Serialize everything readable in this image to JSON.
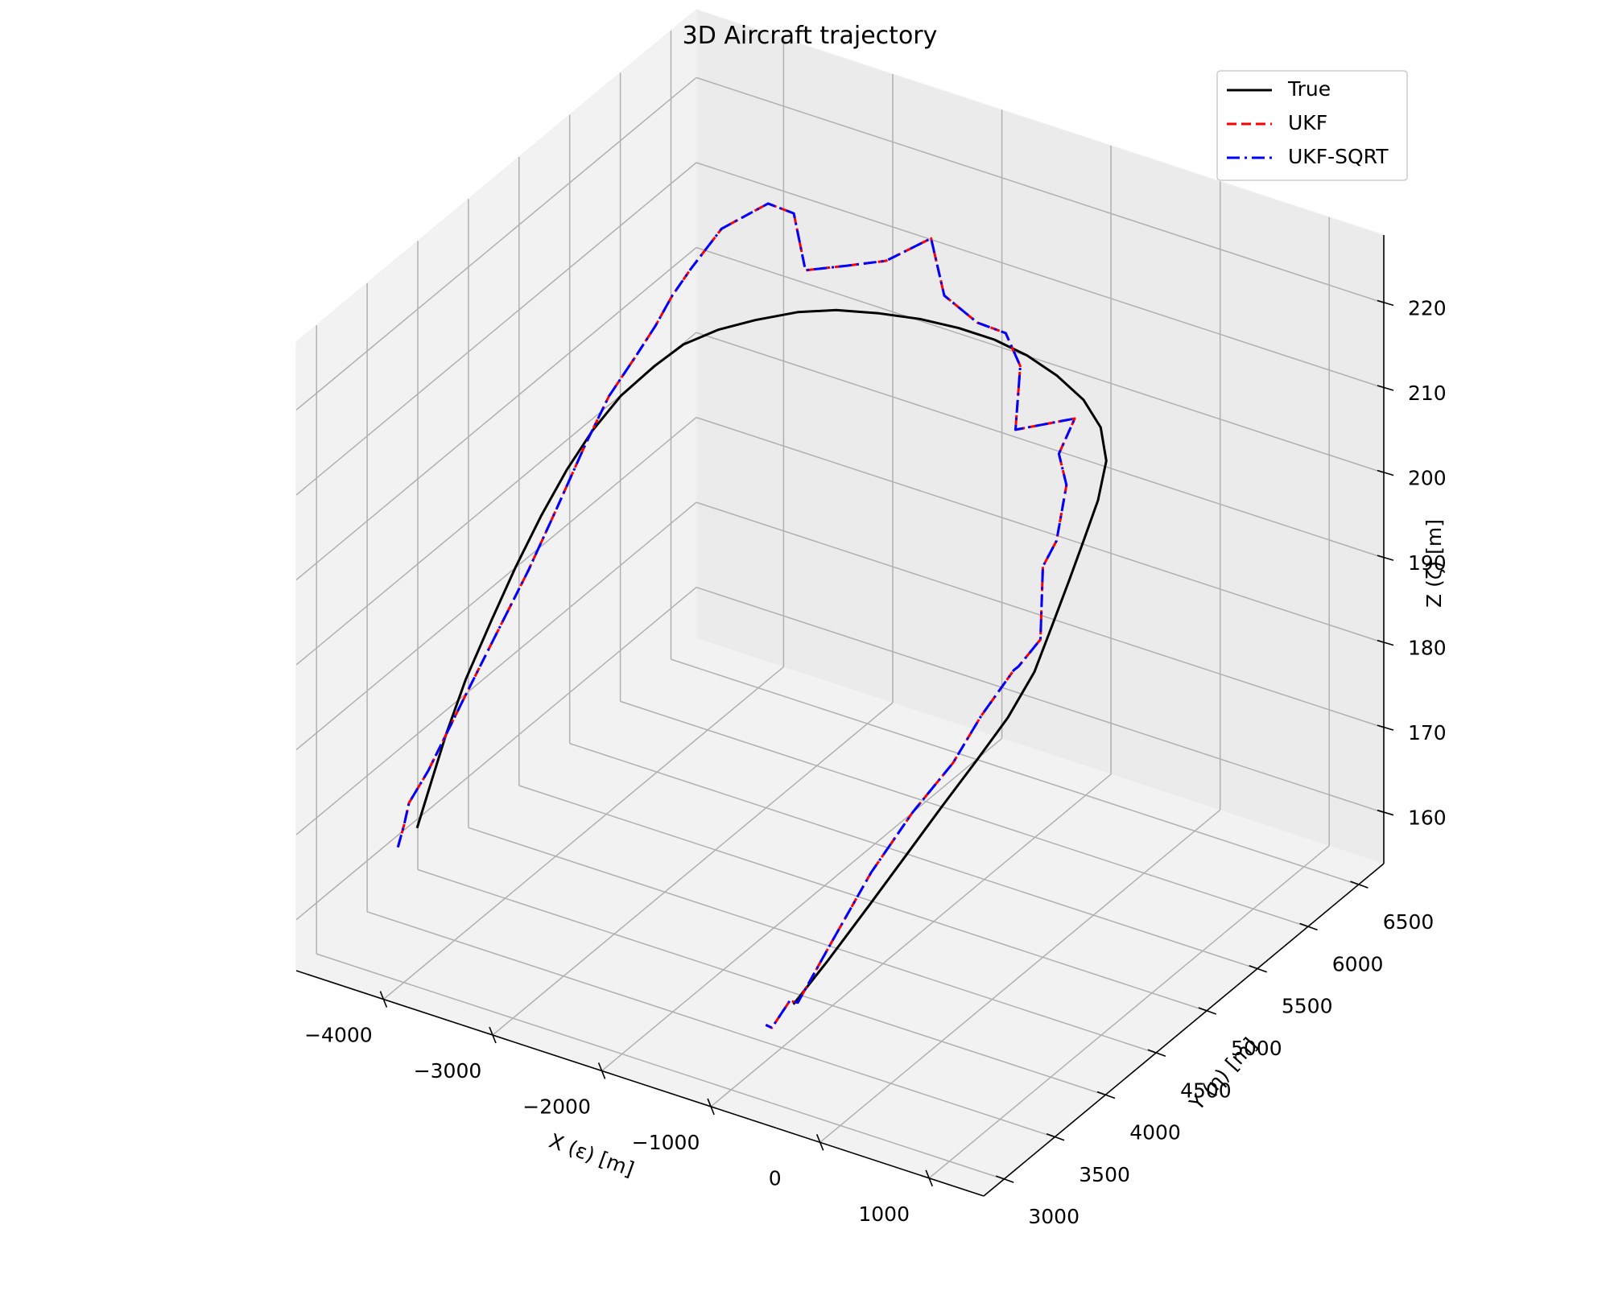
{
  "chart_data": {
    "type": "line",
    "projection": "3d",
    "title": "3D Aircraft trajectory",
    "xlabel": "X (ε) [m]",
    "ylabel": "Y (η) [m]",
    "zlabel": "Z (ζ) [m]",
    "xlim": [
      -4800,
      1500
    ],
    "ylim": [
      2800,
      6750
    ],
    "zlim": [
      154,
      228
    ],
    "x_ticks": [
      "−4000",
      "−3000",
      "−2000",
      "−1000",
      "0",
      "1000"
    ],
    "y_ticks": [
      "3000",
      "3500",
      "4000",
      "4500",
      "5000",
      "5500",
      "6000",
      "6500"
    ],
    "z_ticks": [
      "160",
      "170",
      "180",
      "190",
      "200",
      "210",
      "220"
    ],
    "x_tick_values": [
      -4000,
      -3000,
      -2000,
      -1000,
      0,
      1000
    ],
    "y_tick_values": [
      3000,
      3500,
      4000,
      4500,
      5000,
      5500,
      6000,
      6500
    ],
    "z_tick_values": [
      160,
      170,
      180,
      190,
      200,
      210,
      220
    ],
    "grid": true,
    "legend_position": "top-right",
    "series": [
      {
        "name": "True",
        "color": "#000000",
        "dash": "solid",
        "points": [
          [
            -3925,
            3050,
            172
          ],
          [
            -3932,
            3200,
            176
          ],
          [
            -3938,
            3350,
            180
          ],
          [
            -3942,
            3550,
            184.5
          ],
          [
            -3938,
            3800,
            189
          ],
          [
            -3926,
            4020,
            193
          ],
          [
            -3900,
            4250,
            197
          ],
          [
            -3860,
            4460,
            200.5
          ],
          [
            -3800,
            4650,
            203.5
          ],
          [
            -3720,
            4840,
            206
          ],
          [
            -3600,
            5040,
            208
          ],
          [
            -3480,
            5200,
            209.5
          ],
          [
            -3300,
            5350,
            210.5
          ],
          [
            -3100,
            5500,
            211
          ],
          [
            -2850,
            5650,
            211.5
          ],
          [
            -2600,
            5760,
            211.7
          ],
          [
            -2300,
            5860,
            211.6
          ],
          [
            -2000,
            5940,
            211.4
          ],
          [
            -1700,
            6000,
            211
          ],
          [
            -1400,
            6030,
            210.6
          ],
          [
            -1100,
            6030,
            210
          ],
          [
            -800,
            6000,
            209.2
          ],
          [
            -500,
            5940,
            208.2
          ],
          [
            -250,
            5840,
            207
          ],
          [
            -50,
            5680,
            205.5
          ],
          [
            60,
            5480,
            203.3
          ],
          [
            120,
            5280,
            201
          ],
          [
            170,
            5080,
            198.4
          ],
          [
            200,
            4880,
            195.2
          ],
          [
            220,
            4680,
            191.7
          ],
          [
            180,
            4460,
            188.3
          ],
          [
            90,
            4250,
            185
          ],
          [
            -10,
            4020,
            181.5
          ],
          [
            -120,
            3780,
            177.6
          ],
          [
            -220,
            3520,
            173.8
          ],
          [
            -330,
            3230,
            169.7
          ],
          [
            -420,
            2990,
            166.6
          ]
        ]
      },
      {
        "name": "UKF",
        "color": "#ff0000",
        "dash": "dashed",
        "points": [
          [
            -4100,
            3050,
            169
          ],
          [
            -4107,
            3120,
            171
          ],
          [
            -4110,
            3170,
            173
          ],
          [
            -4102,
            3350,
            175
          ],
          [
            -4078,
            3650,
            180
          ],
          [
            -4050,
            3950,
            185
          ],
          [
            -4020,
            4250,
            190
          ],
          [
            -3990,
            4500,
            195
          ],
          [
            -3965,
            4750,
            200
          ],
          [
            -3930,
            4950,
            204
          ],
          [
            -3868,
            5150,
            207
          ],
          [
            -3810,
            5280,
            209.5
          ],
          [
            -3770,
            5400,
            212
          ],
          [
            -3727,
            5540,
            214
          ],
          [
            -3640,
            5750,
            217
          ],
          [
            -3400,
            5950,
            219
          ],
          [
            -3220,
            6010,
            218
          ],
          [
            -3030,
            5920,
            213
          ],
          [
            -2730,
            6000,
            214
          ],
          [
            -2440,
            6080,
            215
          ],
          [
            -2120,
            6180,
            218
          ],
          [
            -1850,
            6020,
            214
          ],
          [
            -1520,
            5990,
            212.5
          ],
          [
            -1250,
            5980,
            212.5
          ],
          [
            -1015,
            5870,
            210.7
          ],
          [
            -845,
            5640,
            206.2
          ],
          [
            -450,
            5800,
            207.6
          ],
          [
            -410,
            5600,
            205.6
          ],
          [
            -220,
            5470,
            204
          ],
          [
            -60,
            5200,
            200.8
          ],
          [
            -46,
            5050,
            199.3
          ],
          [
            145,
            4820,
            193.8
          ],
          [
            120,
            4630,
            192.4
          ],
          [
            105,
            4600,
            192.2
          ],
          [
            65,
            4320,
            189.4
          ],
          [
            30,
            4080,
            186.1
          ],
          [
            -80,
            3800,
            182.6
          ],
          [
            -180,
            3500,
            178.1
          ],
          [
            -242,
            3180,
            172.9
          ],
          [
            -324,
            2930,
            167.8
          ],
          [
            -371,
            2900,
            168.1
          ],
          [
            -497,
            2860,
            164.8
          ],
          [
            -553,
            2860,
            164.9
          ]
        ]
      },
      {
        "name": "UKF-SQRT",
        "color": "#0000ff",
        "dash": "dashdot",
        "points": [
          [
            -4100,
            3050,
            169
          ],
          [
            -4107,
            3120,
            171
          ],
          [
            -4110,
            3170,
            173
          ],
          [
            -4102,
            3350,
            175
          ],
          [
            -4078,
            3650,
            180
          ],
          [
            -4050,
            3950,
            185
          ],
          [
            -4020,
            4250,
            190
          ],
          [
            -3990,
            4500,
            195
          ],
          [
            -3965,
            4750,
            200
          ],
          [
            -3930,
            4950,
            204
          ],
          [
            -3868,
            5150,
            207
          ],
          [
            -3810,
            5280,
            209.5
          ],
          [
            -3770,
            5400,
            212
          ],
          [
            -3727,
            5540,
            214
          ],
          [
            -3640,
            5750,
            217
          ],
          [
            -3400,
            5950,
            219
          ],
          [
            -3220,
            6010,
            218
          ],
          [
            -3030,
            5920,
            213
          ],
          [
            -2730,
            6000,
            214
          ],
          [
            -2440,
            6080,
            215
          ],
          [
            -2120,
            6180,
            218
          ],
          [
            -1850,
            6020,
            214
          ],
          [
            -1520,
            5990,
            212.5
          ],
          [
            -1250,
            5980,
            212.5
          ],
          [
            -1015,
            5870,
            210.7
          ],
          [
            -845,
            5640,
            206.2
          ],
          [
            -450,
            5800,
            207.6
          ],
          [
            -410,
            5600,
            205.6
          ],
          [
            -220,
            5470,
            204
          ],
          [
            -60,
            5200,
            200.8
          ],
          [
            -46,
            5050,
            199.3
          ],
          [
            145,
            4820,
            193.8
          ],
          [
            120,
            4630,
            192.4
          ],
          [
            105,
            4600,
            192.2
          ],
          [
            65,
            4320,
            189.4
          ],
          [
            30,
            4080,
            186.1
          ],
          [
            -80,
            3800,
            182.6
          ],
          [
            -180,
            3500,
            178.1
          ],
          [
            -242,
            3180,
            172.9
          ],
          [
            -324,
            2930,
            167.8
          ],
          [
            -371,
            2900,
            168.1
          ],
          [
            -497,
            2860,
            164.8
          ],
          [
            -553,
            2860,
            164.9
          ]
        ]
      }
    ]
  }
}
